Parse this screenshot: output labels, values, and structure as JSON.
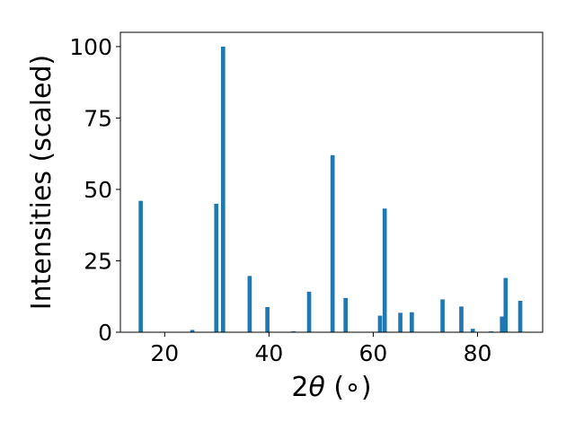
{
  "chart_data": {
    "type": "bar",
    "xlabel_prefix": "2",
    "xlabel_symbol": "θ",
    "xlabel_suffix": " (∘)",
    "ylabel": "Intensities (scaled)",
    "xlim": [
      11.5,
      92.5
    ],
    "ylim": [
      0,
      105
    ],
    "x_ticks": [
      20,
      40,
      60,
      80
    ],
    "y_ticks": [
      0,
      25,
      50,
      75,
      100
    ],
    "bar_color": "#1f77b4",
    "bar_width_data_units": 0.8,
    "grid": false,
    "legend": "none",
    "bars": [
      {
        "x": 15.4,
        "y": 46
      },
      {
        "x": 25.3,
        "y": 0.8
      },
      {
        "x": 29.9,
        "y": 45
      },
      {
        "x": 31.2,
        "y": 100
      },
      {
        "x": 36.3,
        "y": 19.7
      },
      {
        "x": 39.7,
        "y": 8.8
      },
      {
        "x": 44.7,
        "y": 0.3
      },
      {
        "x": 47.7,
        "y": 14.2
      },
      {
        "x": 52.2,
        "y": 62
      },
      {
        "x": 54.7,
        "y": 12
      },
      {
        "x": 61.3,
        "y": 5.8
      },
      {
        "x": 62.2,
        "y": 43.3
      },
      {
        "x": 65.2,
        "y": 6.8
      },
      {
        "x": 67.4,
        "y": 7
      },
      {
        "x": 73.3,
        "y": 11.5
      },
      {
        "x": 76.9,
        "y": 9
      },
      {
        "x": 79.1,
        "y": 1.2
      },
      {
        "x": 82.6,
        "y": 0.3
      },
      {
        "x": 84.7,
        "y": 5.5
      },
      {
        "x": 85.4,
        "y": 19
      },
      {
        "x": 88.2,
        "y": 11
      }
    ]
  }
}
